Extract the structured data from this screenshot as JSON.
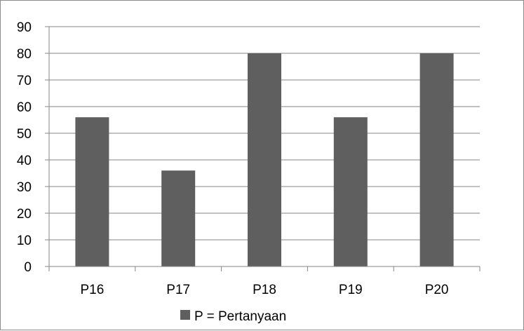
{
  "chart_data": {
    "type": "bar",
    "categories": [
      "P16",
      "P17",
      "P18",
      "P19",
      "P20"
    ],
    "series": [
      {
        "name": "P = Pertanyaan",
        "values": [
          56,
          36,
          80,
          56,
          80
        ]
      }
    ],
    "title": "",
    "xlabel": "",
    "ylabel": "",
    "ylim": [
      0,
      90
    ],
    "yticks": [
      0,
      10,
      20,
      30,
      40,
      50,
      60,
      70,
      80,
      90
    ],
    "grid": "horizontal",
    "legend_position": "bottom",
    "colors": {
      "bar": "#5f5f5f",
      "grid": "#858585",
      "axis": "#858585"
    }
  }
}
